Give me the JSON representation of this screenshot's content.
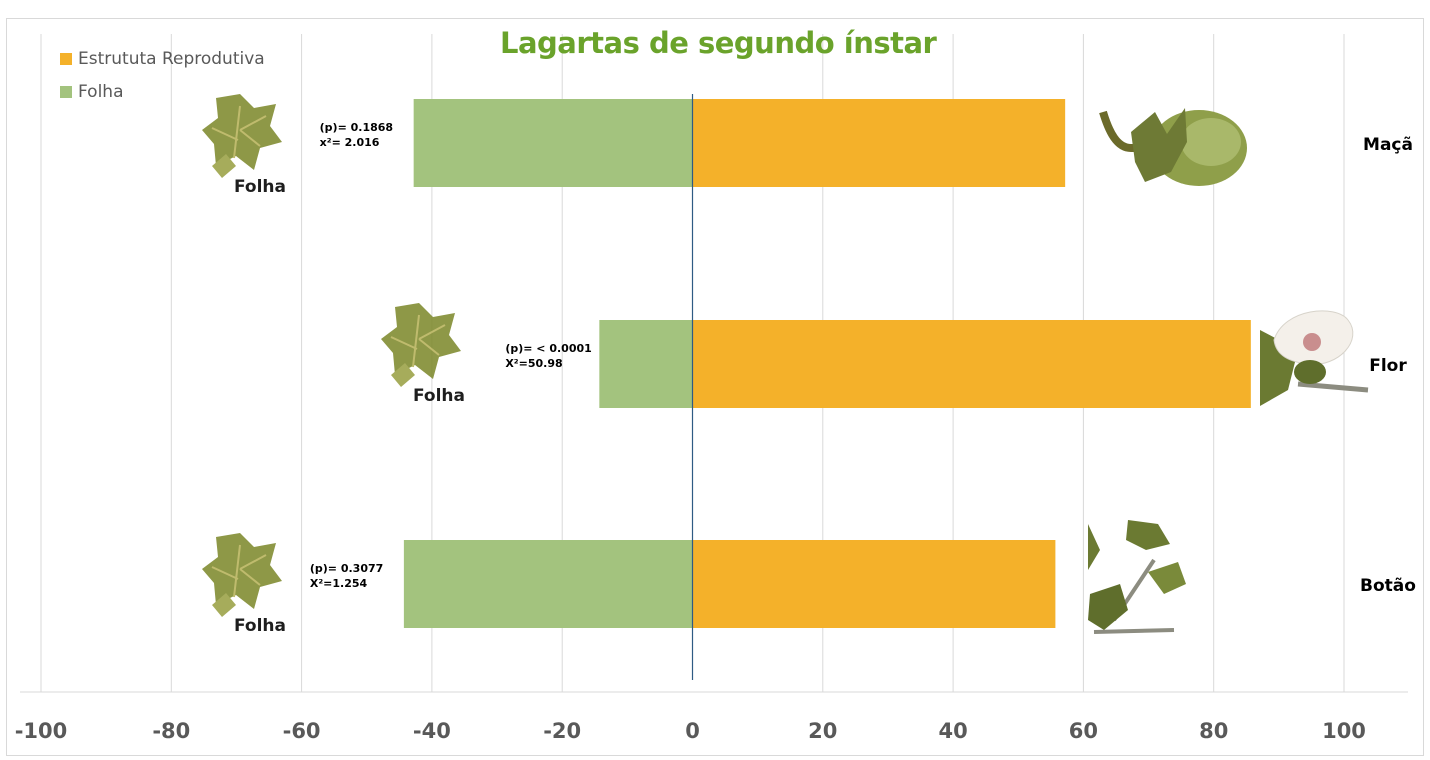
{
  "chart_data": {
    "type": "bar",
    "orientation": "horizontal",
    "title": "Lagartas de segundo ínstar",
    "xlim": [
      -100,
      100
    ],
    "x_ticks": [
      "-100",
      "-80",
      "-60",
      "-40",
      "-20",
      "0",
      "20",
      "40",
      "60",
      "80",
      "100"
    ],
    "grid": true,
    "legend_position": "top-left",
    "categories": [
      "Maçã",
      "Flor",
      "Botão"
    ],
    "series": [
      {
        "name": "Estrututa Reprodutiva",
        "color": "#f4b12a",
        "values": [
          57.2,
          85.7,
          55.7
        ]
      },
      {
        "name": "Folha",
        "color": "#a3c37e",
        "values": [
          -42.8,
          -14.3,
          -44.3
        ]
      }
    ],
    "annotations": [
      {
        "category": "Maçã",
        "line1": "(p)= 0.1868",
        "line2": "x²= 2.016",
        "leaf_label": "Folha"
      },
      {
        "category": "Flor",
        "line1": "(p)= < 0.0001",
        "line2": "X²=50.98",
        "leaf_label": "Folha"
      },
      {
        "category": "Botão",
        "line1": "(p)= 0.3077",
        "line2": "X²=1.254",
        "leaf_label": "Folha"
      }
    ],
    "icons": [
      "leaf-icon",
      "cotton-boll-icon",
      "cotton-flower-icon",
      "cotton-bud-icon"
    ]
  }
}
